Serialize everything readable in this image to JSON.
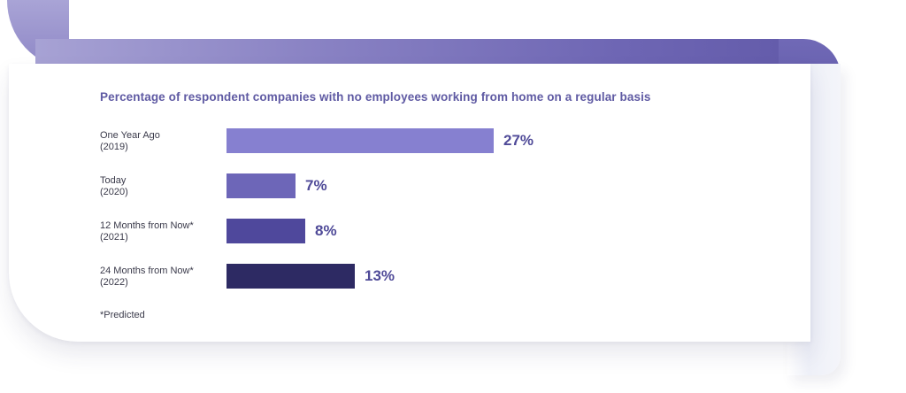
{
  "chart_data": {
    "type": "bar",
    "orientation": "horizontal",
    "title": "Percentage of respondent companies with no employees working from home on a regular basis",
    "categories": [
      "One Year Ago\n(2019)",
      "Today\n(2020)",
      "12 Months from Now*\n(2021)",
      "24 Months from Now*\n(2022)"
    ],
    "values": [
      27,
      7,
      8,
      13
    ],
    "value_labels": [
      "27%",
      "7%",
      "8%",
      "13%"
    ],
    "bar_colors": [
      "#8680d0",
      "#6d66b8",
      "#4f489c",
      "#2d2a63"
    ],
    "xlim": [
      0,
      27
    ],
    "grid": false,
    "footnote": "*Predicted"
  }
}
